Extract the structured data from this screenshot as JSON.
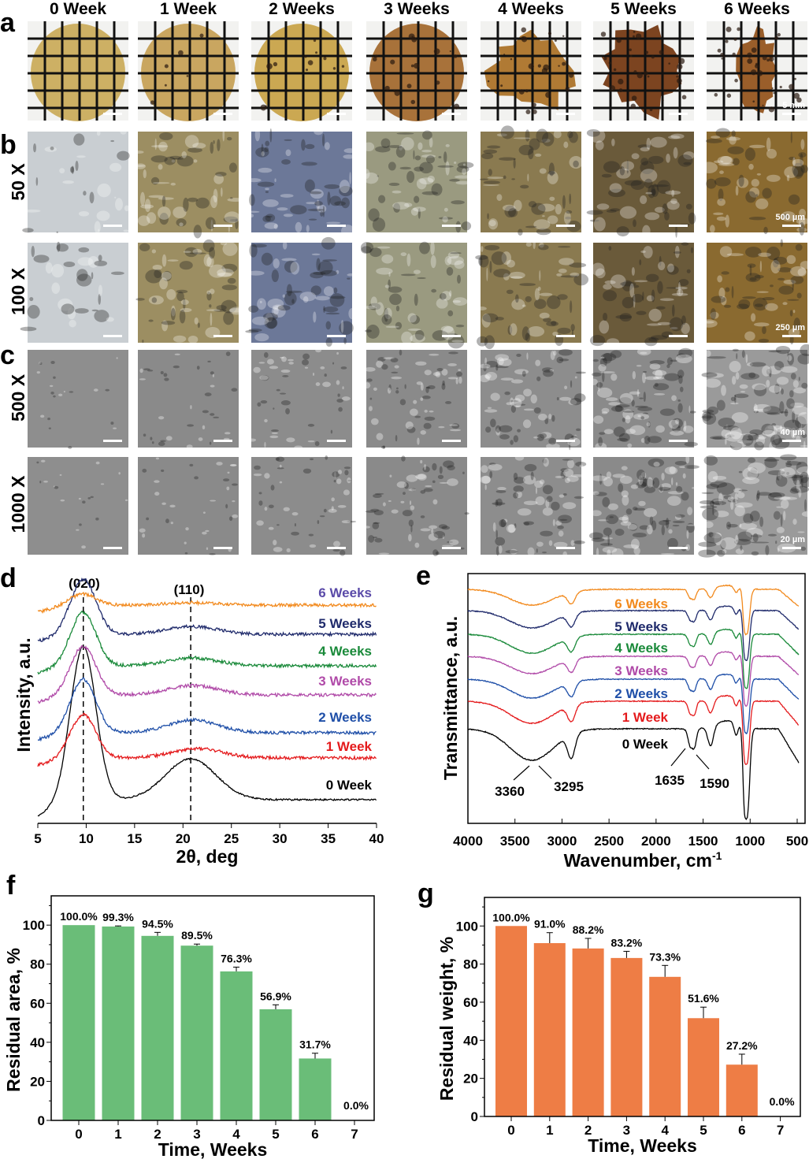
{
  "panels": {
    "a": "a",
    "b": "b",
    "c": "c",
    "d": "d",
    "e": "e",
    "f": "f",
    "g": "g"
  },
  "columns": [
    "0 Week",
    "1 Week",
    "2 Weeks",
    "3 Weeks",
    "4 Weeks",
    "5 Weeks",
    "6 Weeks"
  ],
  "row_labels": {
    "b1": "50 X",
    "b2": "100 X",
    "c1": "500 X",
    "c2": "1000 X"
  },
  "scale_bars": {
    "a": "5 mm",
    "b1": "500 µm",
    "b2": "250 µm",
    "c1": "40 µm",
    "c2": "20 µm"
  },
  "photo_colors": {
    "a": [
      "#cdb064",
      "#c9a660",
      "#cba852",
      "#a8723a",
      "#b07a34",
      "#7c4420",
      "#9a5e2a"
    ],
    "b": [
      "#c9ced2",
      "#9c8e62",
      "#6c7898",
      "#9a9a80",
      "#8a7a50",
      "#6a5a3a",
      "#8a6a30"
    ],
    "c": [
      "#8e8e8e",
      "#8a8a8a",
      "#8c8c8c",
      "#8a8a8a",
      "#8d8d8d",
      "#8a8a8a",
      "#9a9a9a"
    ]
  },
  "chart_data": [
    {
      "panel": "d",
      "type": "line",
      "xlabel": "2θ, deg",
      "ylabel": "Intensity, a.u.",
      "xlim": [
        5,
        40
      ],
      "xticks": [
        5,
        10,
        15,
        20,
        25,
        30,
        35,
        40
      ],
      "annotations": [
        "(020)",
        "(110)"
      ],
      "reference_lines": [
        9.7,
        20.8
      ],
      "series": [
        {
          "name": "0 Week",
          "color": "#000000",
          "peaks": [
            9.7,
            20.8
          ]
        },
        {
          "name": "1 Week",
          "color": "#e41a1c",
          "peaks": [
            9.7,
            21.5
          ]
        },
        {
          "name": "2 Weeks",
          "color": "#1f4fa8",
          "peaks": [
            9.7,
            21
          ]
        },
        {
          "name": "3 Weeks",
          "color": "#b04aa8",
          "peaks": [
            9.7,
            21
          ]
        },
        {
          "name": "4 Weeks",
          "color": "#1a8a3a",
          "peaks": [
            9.7,
            21
          ]
        },
        {
          "name": "5 Weeks",
          "color": "#1f2a6b",
          "peaks": [
            9.7,
            21
          ]
        },
        {
          "name": "6 Weeks",
          "color": "#f28a1e",
          "peaks": [
            9.7,
            21
          ]
        }
      ]
    },
    {
      "panel": "e",
      "type": "line",
      "xlabel": "Wavenumber, cm",
      "xlabel_sup": "-1",
      "ylabel": "Transmittance, a.u.",
      "xlim": [
        4000,
        500
      ],
      "xticks": [
        4000,
        3500,
        3000,
        2500,
        2000,
        1500,
        1000,
        500
      ],
      "annotations": [
        "3360",
        "3295",
        "1635",
        "1590"
      ],
      "series": [
        {
          "name": "0 Week",
          "color": "#000000"
        },
        {
          "name": "1 Week",
          "color": "#e41a1c"
        },
        {
          "name": "2 Weeks",
          "color": "#1f4fa8"
        },
        {
          "name": "3 Weeks",
          "color": "#b04aa8"
        },
        {
          "name": "4 Weeks",
          "color": "#1a8a3a"
        },
        {
          "name": "5 Weeks",
          "color": "#1f2a6b"
        },
        {
          "name": "6 Weeks",
          "color": "#f28a1e"
        }
      ]
    },
    {
      "panel": "f",
      "type": "bar",
      "xlabel": "Time, Weeks",
      "ylabel": "Residual area, %",
      "ylim": [
        0,
        115
      ],
      "categories": [
        "0",
        "1",
        "2",
        "3",
        "4",
        "5",
        "6",
        "7"
      ],
      "values": [
        100.0,
        99.3,
        94.5,
        89.5,
        76.3,
        56.9,
        31.7,
        0.0
      ],
      "errors": [
        0,
        0.3,
        1.8,
        0.8,
        2.2,
        2.3,
        2.7,
        0
      ],
      "labels": [
        "100.0%",
        "99.3%",
        "94.5%",
        "89.5%",
        "76.3%",
        "56.9%",
        "31.7%",
        "0.0%"
      ],
      "yticks": [
        0,
        20,
        40,
        60,
        80,
        100
      ],
      "color": "#6abd78"
    },
    {
      "panel": "g",
      "type": "bar",
      "xlabel": "Time, Weeks",
      "ylabel": "Residual weight, %",
      "ylim": [
        0,
        115
      ],
      "categories": [
        "0",
        "1",
        "2",
        "3",
        "4",
        "5",
        "6",
        "7"
      ],
      "values": [
        100.0,
        91.0,
        88.2,
        83.2,
        73.3,
        51.6,
        27.2,
        0.0
      ],
      "errors": [
        0,
        5.5,
        5.3,
        3.5,
        6,
        5.8,
        5.5,
        0
      ],
      "labels": [
        "100.0%",
        "91.0%",
        "88.2%",
        "83.2%",
        "73.3%",
        "51.6%",
        "27.2%",
        "0.0%"
      ],
      "yticks": [
        0,
        20,
        40,
        60,
        80,
        100
      ],
      "color": "#ee7d45"
    }
  ]
}
